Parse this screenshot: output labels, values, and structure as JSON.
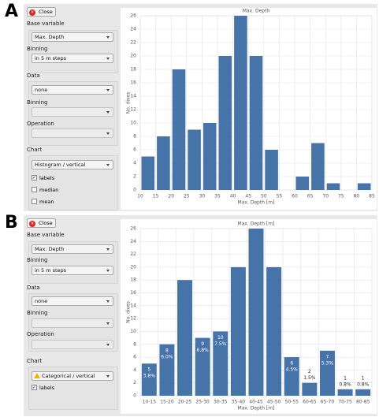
{
  "panels": [
    {
      "letter": "A",
      "sidebar": {
        "close": "Close",
        "base_variable": "Base variable",
        "base_value": "Max. Depth",
        "binning": "Binning",
        "binning_value": "in 5 m steps",
        "data": "Data",
        "data_value": "none",
        "data_binning": "Binning",
        "operation": "Operation",
        "chart": "Chart",
        "chart_value": "Histogram / vertical",
        "options": [
          "labels",
          "median",
          "mean"
        ],
        "checked": [
          true,
          false,
          false
        ]
      }
    },
    {
      "letter": "B",
      "sidebar": {
        "close": "Close",
        "base_variable": "Base variable",
        "base_value": "Max. Depth",
        "binning": "Binning",
        "binning_value": "in 5 m steps",
        "data": "Data",
        "data_value": "none",
        "data_binning": "Binning",
        "operation": "Operation",
        "chart": "Chart",
        "chart_value": "Categorical / vertical",
        "options": [
          "labels"
        ],
        "checked": [
          true
        ]
      }
    }
  ],
  "chart_data": [
    {
      "type": "histogram",
      "title": "Max. Depth",
      "x_label": "Max. Depth [m]",
      "y_label": "No. dives",
      "color": "#4673a8",
      "bins": [
        10,
        15,
        20,
        25,
        30,
        35,
        40,
        45,
        50,
        55,
        60,
        65,
        70,
        75,
        80,
        85
      ],
      "values": [
        5,
        8,
        18,
        9,
        10,
        20,
        26,
        20,
        6,
        0,
        2,
        7,
        1,
        0,
        1
      ],
      "xlim": [
        10,
        85
      ],
      "xticks": [
        10,
        15,
        20,
        25,
        30,
        35,
        40,
        45,
        50,
        55,
        60,
        65,
        70,
        75,
        80,
        85
      ],
      "ylim": [
        0,
        26
      ],
      "yticks": [
        0,
        2,
        4,
        6,
        8,
        10,
        12,
        14,
        16,
        18,
        20,
        22,
        24,
        26
      ],
      "grid": true
    },
    {
      "type": "bar",
      "title": "Max. Depth [m]",
      "x_label": "Max. Depth [m]",
      "y_label": "No. dives",
      "color": "#4673a8",
      "categories": [
        "10-15",
        "15-20",
        "20-25",
        "25-30",
        "30-35",
        "35-40",
        "40-45",
        "45-50",
        "50-55",
        "60-65",
        "65-70",
        "70-75",
        "80-85"
      ],
      "values": [
        5,
        8,
        18,
        9,
        10,
        20,
        26,
        20,
        6,
        2,
        7,
        1,
        1
      ],
      "value_labels": [
        "3.8%",
        "6.0%",
        null,
        "6.8%",
        "7.5%",
        null,
        null,
        null,
        "4.5%",
        "1.5%",
        "5.3%",
        "0.8%",
        "0.8%"
      ],
      "ylim": [
        0,
        26
      ],
      "yticks": [
        0,
        2,
        4,
        6,
        8,
        10,
        12,
        14,
        16,
        18,
        20,
        22,
        24,
        26
      ],
      "grid": true
    }
  ]
}
